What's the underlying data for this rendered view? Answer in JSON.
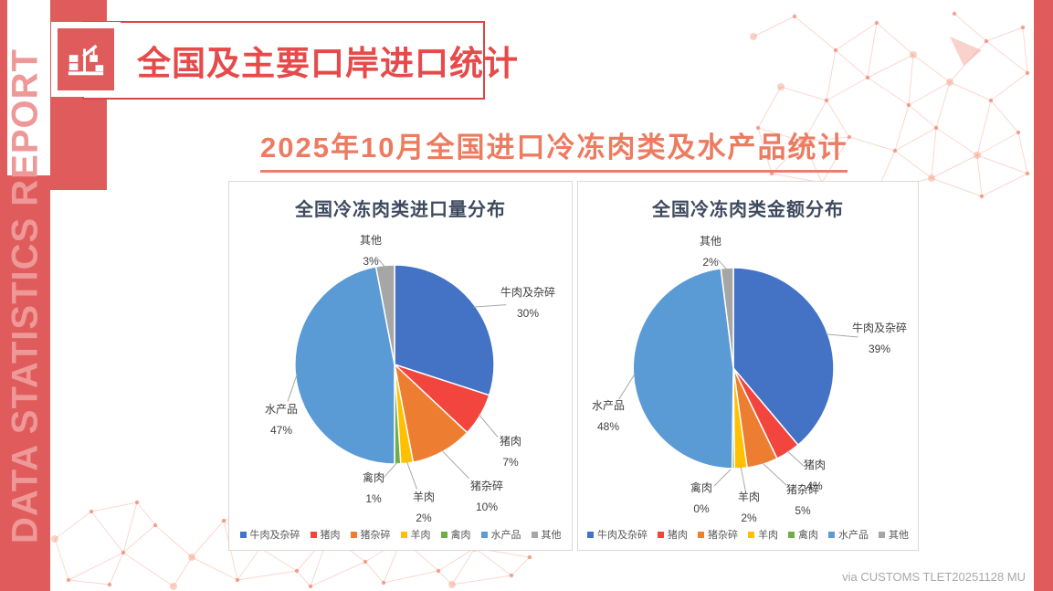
{
  "page": {
    "sidebar_text": "DATA STATISTICS REPORT",
    "header": {
      "title": "全国及主要口岸进口统计",
      "icon": "port-crane-icon"
    },
    "subtitle": "2025年10月全国进口冷冻肉类及水产品统计",
    "footer": "via CUSTOMS TLET20251128 MU"
  },
  "colors": {
    "brand_red": "#E05C5C",
    "banner_border_red": "#DD4444",
    "title_text_red": "#E64A4A",
    "subtitle_salmon": "#EC7B60",
    "sidebar_text_pink": "#EE9898",
    "panel_border": "#D9D9D9",
    "chart_title": "#3E4A5E",
    "label_text": "#404040",
    "legend_text": "#595959",
    "leader_line": "#A9A9A9",
    "footer_gray": "#A8A8A8"
  },
  "chart_data": [
    {
      "type": "pie",
      "title": "全国冷冻肉类进口量分布",
      "categories": [
        "牛肉及杂碎",
        "猪肉",
        "猪杂碎",
        "羊肉",
        "禽肉",
        "水产品",
        "其他"
      ],
      "values": [
        30,
        7,
        10,
        2,
        1,
        47,
        3
      ],
      "unit": "%",
      "colors": [
        "#4472C4",
        "#F2453D",
        "#ED7D31",
        "#FFC000",
        "#70AD47",
        "#5B9BD5",
        "#A6A6A6"
      ],
      "legend_position": "bottom",
      "start_angle_deg": 0,
      "direction": "clockwise"
    },
    {
      "type": "pie",
      "title": "全国冷冻肉类金额分布",
      "categories": [
        "牛肉及杂碎",
        "猪肉",
        "猪杂碎",
        "羊肉",
        "禽肉",
        "水产品",
        "其他"
      ],
      "values": [
        39,
        4,
        5,
        2,
        0,
        48,
        2
      ],
      "unit": "%",
      "colors": [
        "#4472C4",
        "#F2453D",
        "#ED7D31",
        "#FFC000",
        "#70AD47",
        "#5B9BD5",
        "#A6A6A6"
      ],
      "legend_position": "bottom",
      "start_angle_deg": 0,
      "direction": "clockwise"
    }
  ]
}
